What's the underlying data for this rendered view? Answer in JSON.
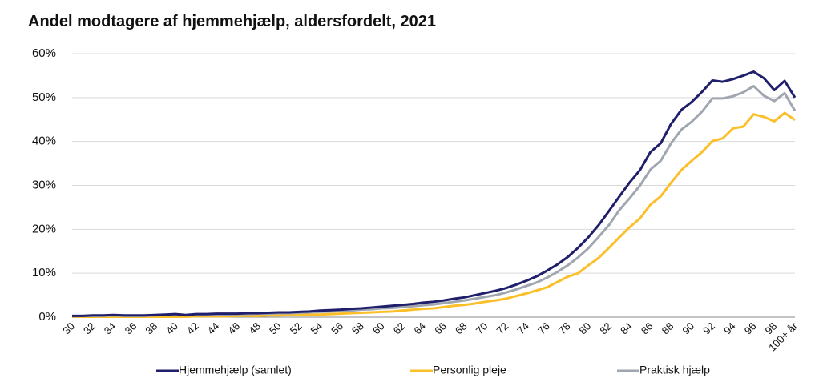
{
  "chart_data": {
    "type": "line",
    "title": "Andel modtagere af hjemmehjælp, aldersfordelt, 2021",
    "categories": [
      "30",
      null,
      "32",
      null,
      "34",
      null,
      "36",
      null,
      "38",
      null,
      "40",
      null,
      "42",
      null,
      "44",
      null,
      "46",
      null,
      "48",
      null,
      "50",
      null,
      "52",
      null,
      "54",
      null,
      "56",
      null,
      "58",
      null,
      "60",
      null,
      "62",
      null,
      "64",
      null,
      "66",
      null,
      "68",
      null,
      "70",
      null,
      "72",
      null,
      "74",
      null,
      "76",
      null,
      "78",
      null,
      "80",
      null,
      "82",
      null,
      "84",
      null,
      "86",
      null,
      "88",
      null,
      "90",
      null,
      "92",
      null,
      "94",
      null,
      "96",
      null,
      "98",
      null,
      "100+ år"
    ],
    "series": [
      {
        "name": "Hjemmehjælp (samlet)",
        "color": "#1f1f6b",
        "values": [
          0.3,
          0.3,
          0.4,
          0.4,
          0.5,
          0.4,
          0.4,
          0.4,
          0.5,
          0.6,
          0.7,
          0.5,
          0.7,
          0.7,
          0.8,
          0.8,
          0.8,
          0.9,
          0.9,
          1.0,
          1.1,
          1.1,
          1.2,
          1.3,
          1.5,
          1.6,
          1.7,
          1.9,
          2.0,
          2.2,
          2.4,
          2.6,
          2.8,
          3.0,
          3.3,
          3.5,
          3.8,
          4.2,
          4.5,
          5.0,
          5.5,
          6.0,
          6.6,
          7.4,
          8.3,
          9.3,
          10.6,
          12.0,
          13.7,
          15.8,
          18.2,
          21.0,
          24.2,
          27.5,
          30.7,
          33.5,
          37.6,
          39.6,
          44.0,
          47.2,
          49.0,
          51.3,
          53.9,
          53.6,
          54.2,
          55.0,
          55.9,
          54.4,
          51.7,
          53.8,
          50.0
        ]
      },
      {
        "name": "Personlig pleje",
        "color": "#fbbf2a",
        "values": [
          0.1,
          0.1,
          0.1,
          0.1,
          0.1,
          0.1,
          0.1,
          0.1,
          0.1,
          0.1,
          0.1,
          0.1,
          0.2,
          0.2,
          0.2,
          0.2,
          0.3,
          0.3,
          0.3,
          0.4,
          0.4,
          0.5,
          0.5,
          0.6,
          0.6,
          0.7,
          0.8,
          0.9,
          1.0,
          1.1,
          1.2,
          1.3,
          1.5,
          1.7,
          1.9,
          2.0,
          2.3,
          2.6,
          2.8,
          3.1,
          3.5,
          3.8,
          4.2,
          4.8,
          5.4,
          6.1,
          6.8,
          8.0,
          9.2,
          10.0,
          11.8,
          13.5,
          15.8,
          18.2,
          20.5,
          22.5,
          25.6,
          27.5,
          30.6,
          33.5,
          35.6,
          37.6,
          40.1,
          40.7,
          43.0,
          43.4,
          46.2,
          45.6,
          44.6,
          46.5,
          44.9
        ]
      },
      {
        "name": "Praktisk hjælp",
        "color": "#a0a6b0",
        "values": [
          0.2,
          0.3,
          0.3,
          0.3,
          0.4,
          0.3,
          0.3,
          0.3,
          0.4,
          0.5,
          0.5,
          0.4,
          0.5,
          0.6,
          0.6,
          0.6,
          0.7,
          0.7,
          0.8,
          0.8,
          0.9,
          0.9,
          1.0,
          1.1,
          1.2,
          1.3,
          1.4,
          1.5,
          1.7,
          1.8,
          2.0,
          2.1,
          2.3,
          2.5,
          2.7,
          2.9,
          3.2,
          3.5,
          3.8,
          4.2,
          4.6,
          5.0,
          5.6,
          6.3,
          7.1,
          7.9,
          9.0,
          10.3,
          11.8,
          13.6,
          15.7,
          18.3,
          21.0,
          24.4,
          27.1,
          30.0,
          33.6,
          35.6,
          39.6,
          42.7,
          44.5,
          46.8,
          49.8,
          49.8,
          50.3,
          51.2,
          52.6,
          50.4,
          49.2,
          51.0,
          47.0
        ]
      }
    ],
    "ylim": [
      0,
      60
    ],
    "yticks": [
      {
        "value": 0,
        "label": "0%"
      },
      {
        "value": 10,
        "label": "10%"
      },
      {
        "value": 20,
        "label": "20%"
      },
      {
        "value": 30,
        "label": "30%"
      },
      {
        "value": 40,
        "label": "40%"
      },
      {
        "value": 50,
        "label": "50%"
      },
      {
        "value": 60,
        "label": "60%"
      }
    ],
    "grid": true,
    "legend": "bottom"
  }
}
